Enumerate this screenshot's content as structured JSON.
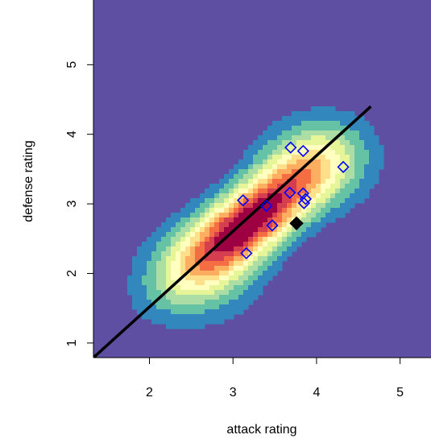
{
  "chart_data": {
    "type": "scatter",
    "title": "",
    "xlabel": "attack rating",
    "ylabel": "defense rating",
    "xlim": [
      1.33,
      5.37
    ],
    "ylim": [
      0.79,
      5.93
    ],
    "xticks": [
      2,
      3,
      4,
      5
    ],
    "yticks": [
      1,
      2,
      3,
      4,
      5
    ],
    "background": "2D kernel density heatmap, spectral palette",
    "palette": [
      "#5e4fa2",
      "#3288bd",
      "#66c2a5",
      "#abdda4",
      "#e6f598",
      "#ffffbf",
      "#fee08b",
      "#fdae61",
      "#f46d43",
      "#d53e4f",
      "#9e0142"
    ],
    "density_peak": {
      "x": 3.2,
      "y": 2.75
    },
    "regression_line": {
      "x": [
        1.33,
        4.65
      ],
      "y": [
        0.79,
        4.4
      ],
      "color": "#000000"
    },
    "points": {
      "marker": "open-diamond",
      "color": "#0000ff",
      "x": [
        3.69,
        3.84,
        4.32,
        3.12,
        3.4,
        3.68,
        3.84,
        3.87,
        3.85,
        3.47,
        3.16
      ],
      "y": [
        3.81,
        3.76,
        3.53,
        3.05,
        2.97,
        3.16,
        3.15,
        3.07,
        3.01,
        2.69,
        2.29
      ]
    },
    "highlight_point": {
      "marker": "filled-diamond",
      "color": "#000000",
      "x": 3.76,
      "y": 2.72
    },
    "grid": false
  }
}
